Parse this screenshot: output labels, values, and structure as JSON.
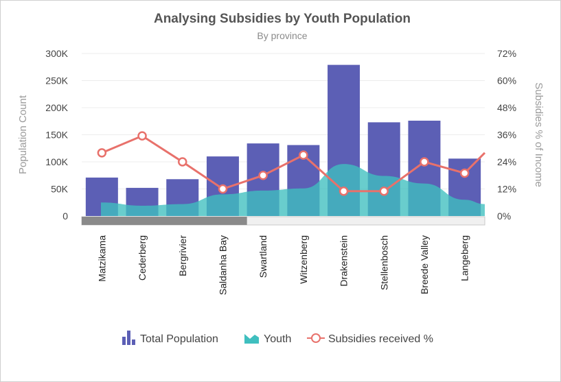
{
  "chart_data": {
    "type": "bar+area+line",
    "title": "Analysing Subsidies by Youth Population",
    "subtitle": "By province",
    "categories": [
      "Matzikama",
      "Cederberg",
      "Bergrivier",
      "Saldanha Bay",
      "Swartland",
      "Witzenberg",
      "Drakenstein",
      "Stellenbosch",
      "Breede Valley",
      "Langeberg"
    ],
    "y_left": {
      "title": "Population Count",
      "ticks": [
        "0",
        "50K",
        "100K",
        "150K",
        "200K",
        "250K",
        "300K"
      ],
      "min": 0,
      "max": 300000
    },
    "y_right": {
      "title": "Subsidies % of Income",
      "ticks": [
        "0%",
        "12%",
        "24%",
        "36%",
        "48%",
        "60%",
        "72%"
      ],
      "min": 0,
      "max": 72
    },
    "series": [
      {
        "name": "Total Population",
        "type": "bar",
        "color": "#5c5fb5",
        "values": [
          71000,
          52000,
          68000,
          110000,
          134000,
          131000,
          279000,
          173000,
          176000,
          106000
        ]
      },
      {
        "name": "Youth",
        "type": "area",
        "color": "#3fbfbf",
        "values": [
          25000,
          19000,
          22000,
          40000,
          47000,
          51000,
          96000,
          74000,
          60000,
          30000
        ],
        "edge_values": {
          "left": 25000,
          "right": 22000
        }
      },
      {
        "name": "Subsidies received %",
        "type": "line",
        "color": "#e8716b",
        "values": [
          28,
          35.5,
          24,
          12,
          18,
          27,
          11,
          11,
          24,
          19
        ],
        "edge_right": 28
      }
    ],
    "scrollbar": {
      "visible_fraction": 0.41
    },
    "legend": [
      "Total Population",
      "Youth",
      "Subsidies received %"
    ],
    "legend_position": "bottom"
  }
}
